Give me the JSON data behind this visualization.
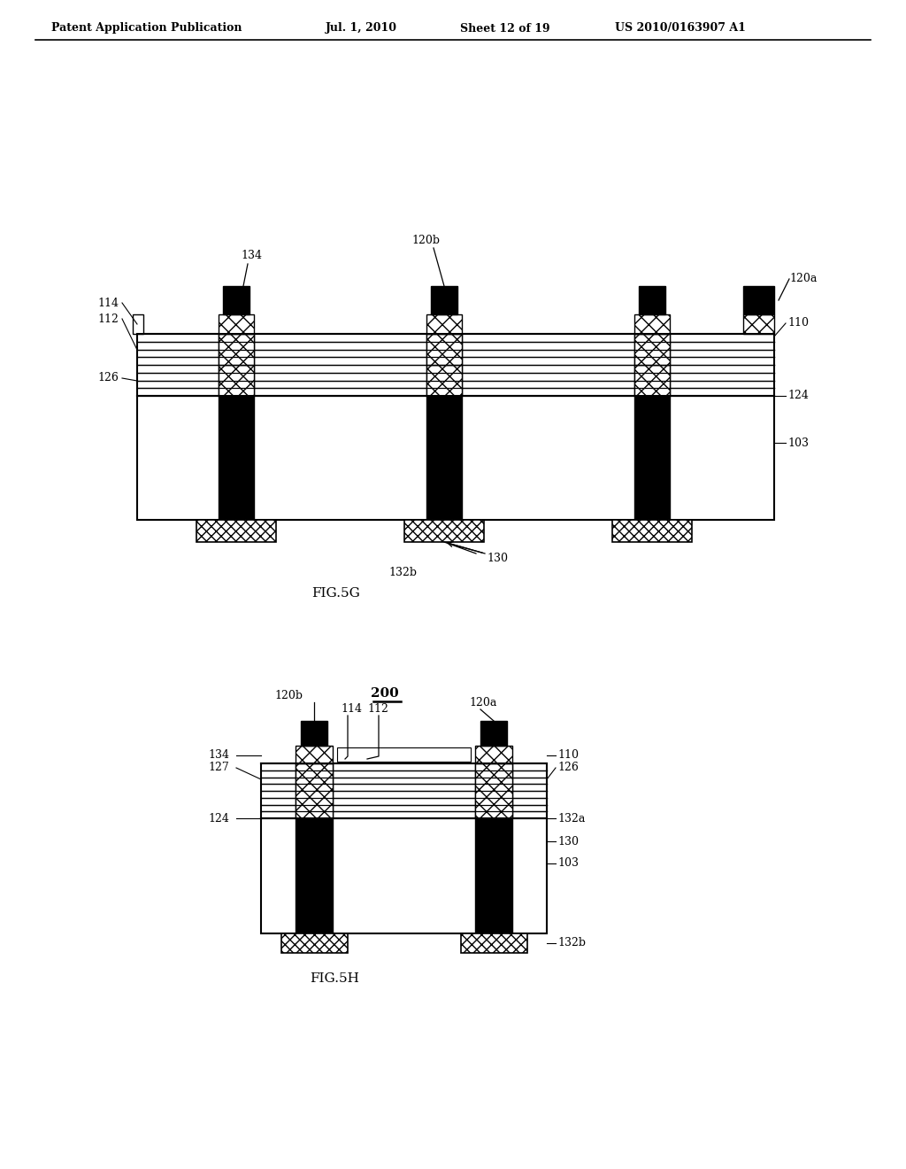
{
  "bg_color": "#ffffff",
  "header_text": "Patent Application Publication",
  "header_date": "Jul. 1, 2010",
  "header_sheet": "Sheet 12 of 19",
  "header_patent": "US 2010/0163907 A1",
  "fig5g_label": "FIG.5G",
  "fig5h_label": "FIG.5H",
  "label_200": "200"
}
